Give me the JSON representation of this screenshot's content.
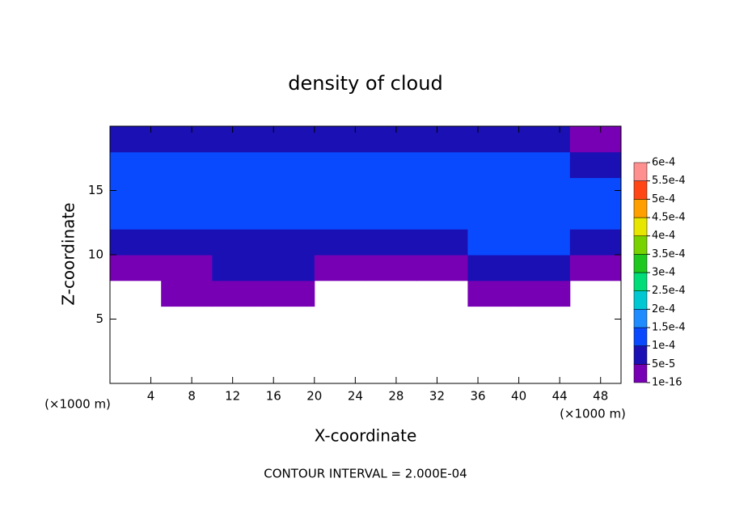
{
  "chart_data": {
    "type": "contour",
    "title": "density of cloud",
    "xlabel": "X-coordinate",
    "ylabel": "Z-coordinate",
    "xunit": "(×1000 m)",
    "yunit": "(×1000 m)",
    "footnote": "CONTOUR INTERVAL = 2.000E-04",
    "xlim": [
      0,
      50
    ],
    "ylim": [
      0,
      20
    ],
    "xticks": [
      4,
      8,
      12,
      16,
      20,
      24,
      28,
      32,
      36,
      40,
      44,
      48
    ],
    "yticks": [
      5,
      10,
      15
    ],
    "x_edges": [
      0,
      5,
      10,
      15,
      20,
      25,
      30,
      35,
      40,
      45,
      50
    ],
    "z_edges": [
      6,
      8,
      10,
      12,
      14,
      16,
      18,
      20
    ],
    "values": [
      [
        null,
        3e-05,
        3e-05,
        3e-05,
        null,
        null,
        null,
        3e-05,
        3e-05,
        null
      ],
      [
        3e-05,
        3e-05,
        7e-05,
        7e-05,
        3e-05,
        3e-05,
        3e-05,
        7e-05,
        7e-05,
        3e-05
      ],
      [
        8e-05,
        8e-05,
        9e-05,
        9e-05,
        8e-05,
        8e-05,
        8e-05,
        0.00012,
        0.00012,
        8e-05
      ],
      [
        0.00012,
        0.00011,
        0.00011,
        0.00012,
        0.00012,
        0.00012,
        0.00012,
        0.00012,
        0.00012,
        0.00011
      ],
      [
        0.00013,
        0.00012,
        0.00012,
        0.00013,
        0.00013,
        0.00013,
        0.00013,
        0.00013,
        0.00013,
        0.00012
      ],
      [
        0.00011,
        0.00011,
        0.00012,
        0.00012,
        0.00012,
        0.00012,
        0.00012,
        0.00012,
        0.00011,
        8e-05
      ],
      [
        8e-05,
        7e-05,
        8e-05,
        8e-05,
        8e-05,
        8e-05,
        8e-05,
        8e-05,
        7e-05,
        3e-05
      ]
    ],
    "colorbar_ticks": [
      {
        "value": 1e-16,
        "label": "1e-16"
      },
      {
        "value": 5e-05,
        "label": "5e-5"
      },
      {
        "value": 0.0001,
        "label": "1e-4"
      },
      {
        "value": 0.00015,
        "label": "1.5e-4"
      },
      {
        "value": 0.0002,
        "label": "2e-4"
      },
      {
        "value": 0.00025,
        "label": "2.5e-4"
      },
      {
        "value": 0.0003,
        "label": "3e-4"
      },
      {
        "value": 0.00035,
        "label": "3.5e-4"
      },
      {
        "value": 0.0004,
        "label": "4e-4"
      },
      {
        "value": 0.00045,
        "label": "4.5e-4"
      },
      {
        "value": 0.0005,
        "label": "5e-4"
      },
      {
        "value": 0.00055,
        "label": "5.5e-4"
      },
      {
        "value": 0.0006,
        "label": "6e-4"
      }
    ],
    "colors": [
      "#7800b4",
      "#1a10b4",
      "#0a4aff",
      "#1e8cff",
      "#00c8d2",
      "#00dc78",
      "#1ec81e",
      "#78d200",
      "#e6e600",
      "#ffa000",
      "#ff4614",
      "#ff9090"
    ]
  }
}
